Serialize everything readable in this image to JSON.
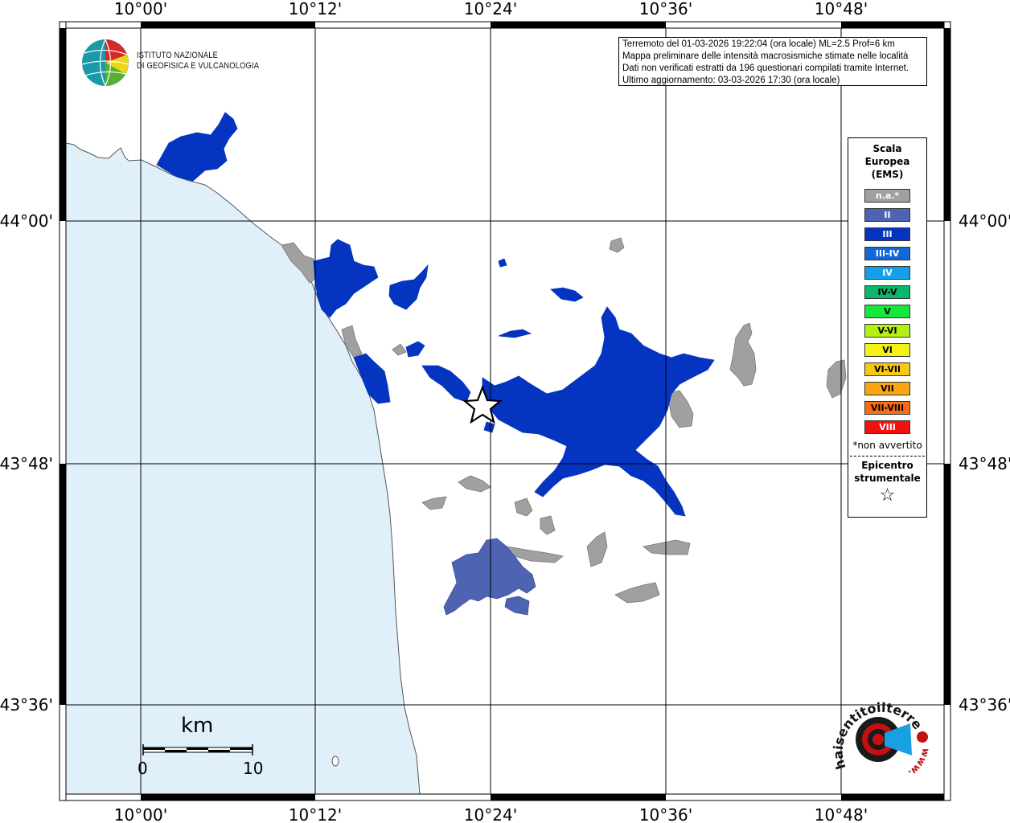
{
  "axes": {
    "lon_labels": [
      "10°00'",
      "10°12'",
      "10°24'",
      "10°36'",
      "10°48'"
    ],
    "lat_labels": [
      "44°00'",
      "43°48'",
      "43°36'"
    ]
  },
  "logo": {
    "line1": "ISTITUTO NAZIONALE",
    "line2": "DI GEOFISICA E VULCANOLOGIA"
  },
  "info": {
    "line1": "Terremoto del 01-03-2026 19:22:04 (ora locale) ML=2.5 Prof=6 km",
    "line2": "Mappa preliminare delle intensità macrosismiche stimate nelle località",
    "line3": "Dati non verificati estratti da 196 questionari compilati tramite Internet.",
    "line4": "Ultimo aggiornamento: 03-03-2026 17:30 (ora locale)"
  },
  "legend": {
    "title1": "Scala",
    "title2": "Europea",
    "title3": "(EMS)",
    "items": [
      {
        "label": "n.a.*",
        "color": "#a0a0a0"
      },
      {
        "label": "II",
        "color": "#4f63b3"
      },
      {
        "label": "III",
        "color": "#0535c0"
      },
      {
        "label": "III-IV",
        "color": "#1468d6"
      },
      {
        "label": "IV",
        "color": "#12a0ea"
      },
      {
        "label": "IV-V",
        "color": "#08b868"
      },
      {
        "label": "V",
        "color": "#14e83c"
      },
      {
        "label": "V-VI",
        "color": "#b4f014"
      },
      {
        "label": "VI",
        "color": "#f5f016"
      },
      {
        "label": "VI-VII",
        "color": "#f8c815"
      },
      {
        "label": "VII",
        "color": "#fca514"
      },
      {
        "label": "VII-VIII",
        "color": "#fb6c10"
      },
      {
        "label": "VIII",
        "color": "#f41010"
      }
    ],
    "note": "*non avvertito",
    "epi1": "Epicentro",
    "epi2": "strumentale",
    "star": "☆"
  },
  "scalebar": {
    "unit": "km",
    "min": "0",
    "max": "10"
  },
  "hst_logo": {
    "text": "haisentitoilterremoto.it",
    "www": "www."
  },
  "colors": {
    "sea": "#dff0fb",
    "intensity_III": "#0535c0",
    "intensity_II": "#4f63b3",
    "not_felt": "#a0a0a0"
  }
}
